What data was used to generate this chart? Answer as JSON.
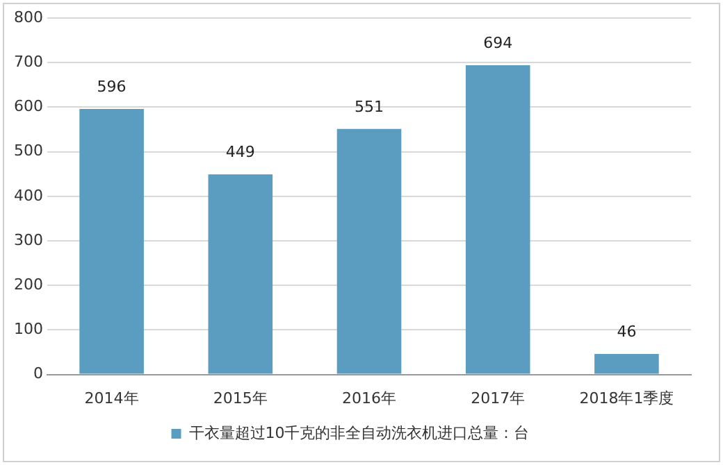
{
  "chart_data": {
    "type": "bar",
    "categories": [
      "2014年",
      "2015年",
      "2016年",
      "2017年",
      "2018年1季度"
    ],
    "series": [
      {
        "name": "干衣量超过10千克的非全自动洗衣机进口总量：台",
        "color": "#5b9dc0",
        "values": [
          596,
          449,
          551,
          694,
          46
        ]
      }
    ],
    "ylim": [
      0,
      800
    ],
    "yticks": [
      0,
      100,
      200,
      300,
      400,
      500,
      600,
      700,
      800
    ],
    "grid": "y",
    "legend": "bottom",
    "data_labels": true
  }
}
